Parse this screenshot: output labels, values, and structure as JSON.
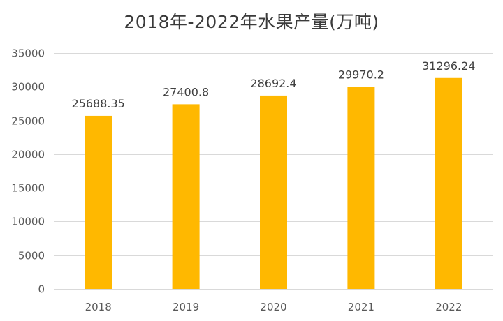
{
  "chart_data": {
    "type": "bar",
    "title": "2018年-2022年水果产量(万吨)",
    "xlabel": "",
    "ylabel": "",
    "categories": [
      "2018",
      "2019",
      "2020",
      "2021",
      "2022"
    ],
    "values": [
      25688.35,
      27400.8,
      28692.4,
      29970.2,
      31296.24
    ],
    "data_labels": [
      "25688.35",
      "27400.8",
      "28692.4",
      "29970.2",
      "31296.24"
    ],
    "ylim": [
      0,
      35000
    ],
    "yticks": [
      0,
      5000,
      10000,
      15000,
      20000,
      25000,
      30000,
      35000
    ],
    "grid": true,
    "legend": "none",
    "bar_color": "#FFB800"
  }
}
